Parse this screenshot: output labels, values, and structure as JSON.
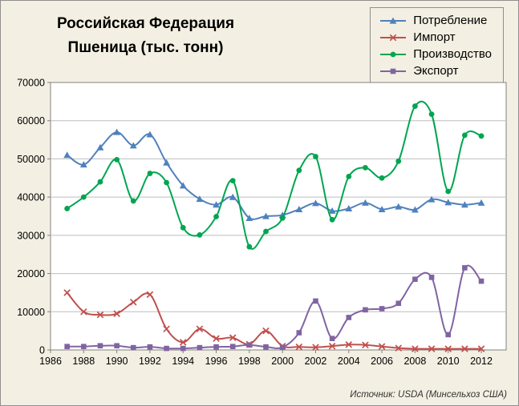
{
  "title": {
    "line1": "Российская Федерация",
    "line2": "Пшеница (тыс. тонн)"
  },
  "source": "Источник: USDA (Минсельхоз США)",
  "colors": {
    "background": "#F3EFE2",
    "plot_background": "#FFFFFF",
    "grid": "#BEBEBE",
    "axis": "#808080",
    "text": "#000000"
  },
  "chart_data": {
    "type": "line",
    "title": "Российская Федерация Пшеница (тыс. тонн)",
    "xlabel": "",
    "ylabel": "",
    "grid": true,
    "legend_position": "top-right",
    "xlim": [
      1986,
      2013.5
    ],
    "ylim": [
      0,
      70000
    ],
    "ytick_step": 10000,
    "xticks": [
      1986,
      1988,
      1990,
      1992,
      1994,
      1996,
      1998,
      2000,
      2002,
      2004,
      2006,
      2008,
      2010,
      2012
    ],
    "x": [
      1987,
      1988,
      1989,
      1990,
      1991,
      1992,
      1993,
      1994,
      1995,
      1996,
      1997,
      1998,
      1999,
      2000,
      2001,
      2002,
      2003,
      2004,
      2005,
      2006,
      2007,
      2008,
      2009,
      2010,
      2011,
      2012
    ],
    "series": [
      {
        "key": "consumption",
        "name": "Потребление",
        "color": "#4F81BD",
        "marker": "triangle",
        "values": [
          51000,
          48500,
          53000,
          57000,
          53500,
          56400,
          49000,
          43000,
          39500,
          38000,
          40000,
          34500,
          35000,
          35300,
          36800,
          38400,
          36400,
          37000,
          38500,
          36800,
          37500,
          36700,
          39400,
          38600,
          38000,
          38500
        ]
      },
      {
        "key": "import",
        "name": "Импорт",
        "color": "#C0504D",
        "marker": "x",
        "values": [
          15000,
          10000,
          9200,
          9500,
          12500,
          14500,
          5500,
          2000,
          5500,
          3000,
          3200,
          1500,
          5000,
          1000,
          800,
          700,
          1000,
          1400,
          1300,
          900,
          500,
          300,
          300,
          300,
          300,
          300
        ]
      },
      {
        "key": "production",
        "name": "Производство",
        "color": "#00A550",
        "marker": "circle",
        "values": [
          37000,
          40000,
          44000,
          49800,
          39000,
          46200,
          43800,
          32000,
          30100,
          34900,
          44300,
          27000,
          31000,
          34500,
          47000,
          50600,
          34100,
          45400,
          47700,
          45000,
          49400,
          63800,
          61700,
          41500,
          56200,
          56000
        ]
      },
      {
        "key": "export",
        "name": "Экспорт",
        "color": "#8064A2",
        "marker": "square",
        "values": [
          900,
          900,
          1100,
          1100,
          600,
          800,
          400,
          400,
          600,
          800,
          900,
          1300,
          800,
          700,
          4500,
          12800,
          3000,
          8500,
          10500,
          10800,
          12200,
          18500,
          19000,
          4000,
          21500,
          18000
        ]
      }
    ]
  }
}
